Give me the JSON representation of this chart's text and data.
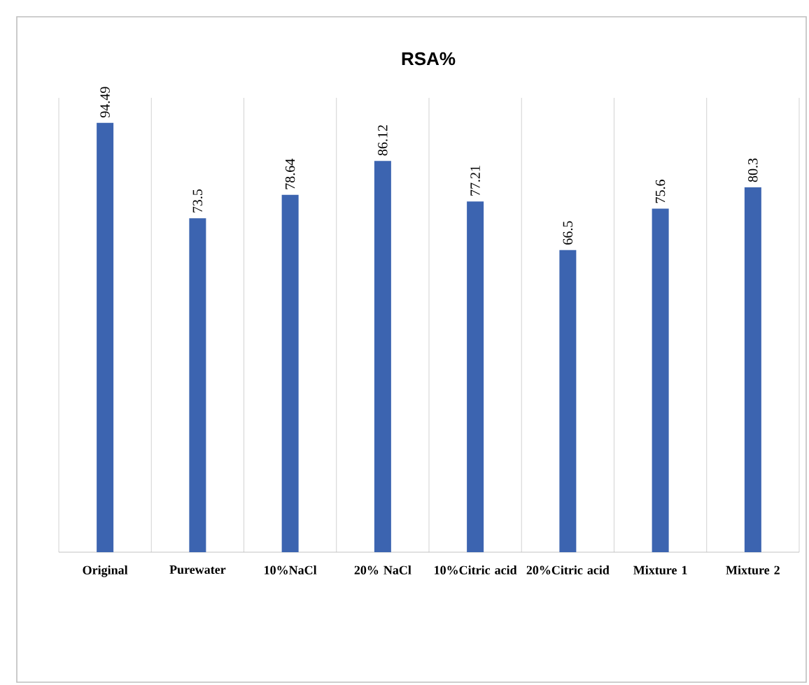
{
  "chart_data": {
    "type": "bar",
    "title": "RSA%",
    "categories": [
      "Original",
      "Purewater",
      "10%NaCl",
      "20% NaCl",
      "10%Citric acid",
      "20%Citric acid",
      "Mixture 1",
      "Mixture 2"
    ],
    "values": [
      94.49,
      73.5,
      78.64,
      86.12,
      77.21,
      66.5,
      75.6,
      80.3
    ],
    "color": "#3c64b0",
    "ylim": [
      0,
      100
    ],
    "grid": "x",
    "data_labels": true,
    "tick_labels": "x"
  }
}
